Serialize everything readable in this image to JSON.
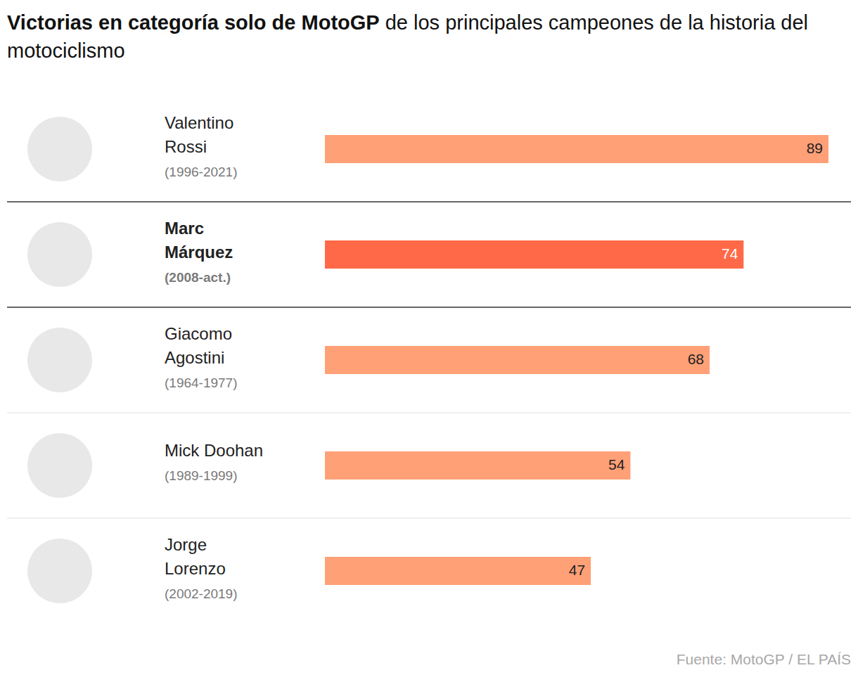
{
  "chart_data": {
    "type": "bar",
    "orientation": "horizontal",
    "title": "Victorias en categoría solo de MotoGP",
    "subtitle": "de los principales campeones de la historia del motociclismo",
    "categories": [
      "Valentino Rossi",
      "Marc Márquez",
      "Giacomo Agostini",
      "Mick Doohan",
      "Jorge Lorenzo"
    ],
    "periods": [
      "(1996-2021)",
      "(2008-act.)",
      "(1964-1977)",
      "(1989-1999)",
      "(2002-2019)"
    ],
    "values": [
      89,
      74,
      68,
      54,
      47
    ],
    "colors": [
      "#ffa077",
      "#ff6948",
      "#ffa077",
      "#ffa077",
      "#ffa077"
    ],
    "xlim": [
      0,
      89
    ],
    "xticks": [],
    "tick_labels": false,
    "data_labels": true,
    "grid": false,
    "source": "Fuente: MotoGP / EL PAÍS"
  }
}
